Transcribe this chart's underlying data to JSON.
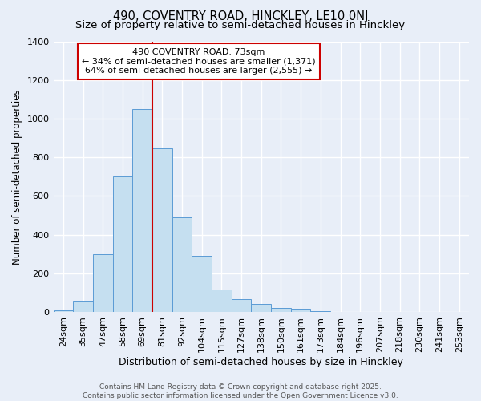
{
  "title": "490, COVENTRY ROAD, HINCKLEY, LE10 0NJ",
  "subtitle": "Size of property relative to semi-detached houses in Hinckley",
  "xlabel": "Distribution of semi-detached houses by size in Hinckley",
  "ylabel": "Number of semi-detached properties",
  "categories": [
    "24sqm",
    "35sqm",
    "47sqm",
    "58sqm",
    "69sqm",
    "81sqm",
    "92sqm",
    "104sqm",
    "115sqm",
    "127sqm",
    "138sqm",
    "150sqm",
    "161sqm",
    "173sqm",
    "184sqm",
    "196sqm",
    "207sqm",
    "218sqm",
    "230sqm",
    "241sqm",
    "253sqm"
  ],
  "values": [
    10,
    60,
    300,
    700,
    1050,
    845,
    490,
    290,
    115,
    65,
    40,
    20,
    15,
    5,
    0,
    0,
    0,
    0,
    0,
    0,
    0
  ],
  "bar_color": "#c5dff0",
  "bar_edge_color": "#5b9bd5",
  "bar_alpha": 1.0,
  "red_line_x": 4.5,
  "annotation_title": "490 COVENTRY ROAD: 73sqm",
  "annotation_line2": "← 34% of semi-detached houses are smaller (1,371)",
  "annotation_line3": "64% of semi-detached houses are larger (2,555) →",
  "annotation_box_facecolor": "#ffffff",
  "annotation_box_edgecolor": "#cc0000",
  "ylim": [
    0,
    1400
  ],
  "yticks": [
    0,
    200,
    400,
    600,
    800,
    1000,
    1200,
    1400
  ],
  "background_color": "#e8eef8",
  "grid_color": "#ffffff",
  "footer_line1": "Contains HM Land Registry data © Crown copyright and database right 2025.",
  "footer_line2": "Contains public sector information licensed under the Open Government Licence v3.0.",
  "title_fontsize": 10.5,
  "subtitle_fontsize": 9.5,
  "xlabel_fontsize": 9,
  "ylabel_fontsize": 8.5,
  "tick_fontsize": 8,
  "annotation_fontsize": 8,
  "footer_fontsize": 6.5
}
